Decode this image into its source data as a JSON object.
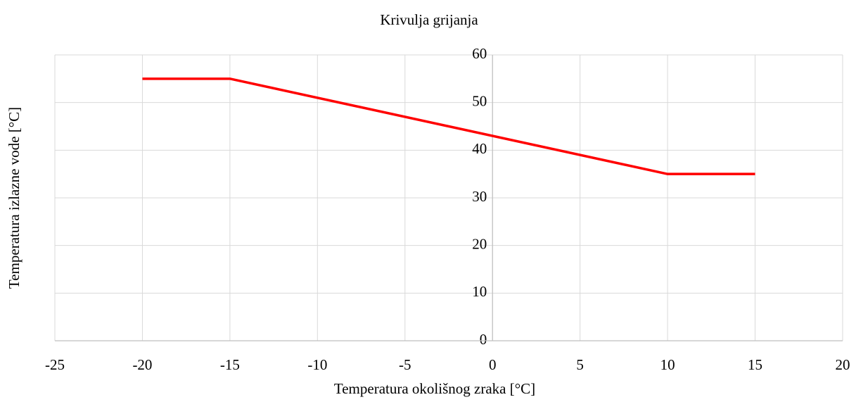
{
  "chart_data": {
    "type": "line",
    "title": "Krivulja grijanja",
    "x_label": "Temperatura okolišnog zraka [°C]",
    "y_label": "Temperatura izlazne vode [°C]",
    "x": [
      -20,
      -15,
      10,
      15
    ],
    "values": [
      55,
      55,
      35,
      35
    ],
    "color": "#ff0000",
    "xlim": [
      -25,
      20
    ],
    "xticks": [
      -25,
      -20,
      -15,
      -10,
      -5,
      0,
      5,
      10,
      15,
      20
    ],
    "ylim": [
      0,
      60
    ],
    "yticks": [
      0,
      10,
      20,
      30,
      40,
      50,
      60
    ],
    "grid": true
  }
}
